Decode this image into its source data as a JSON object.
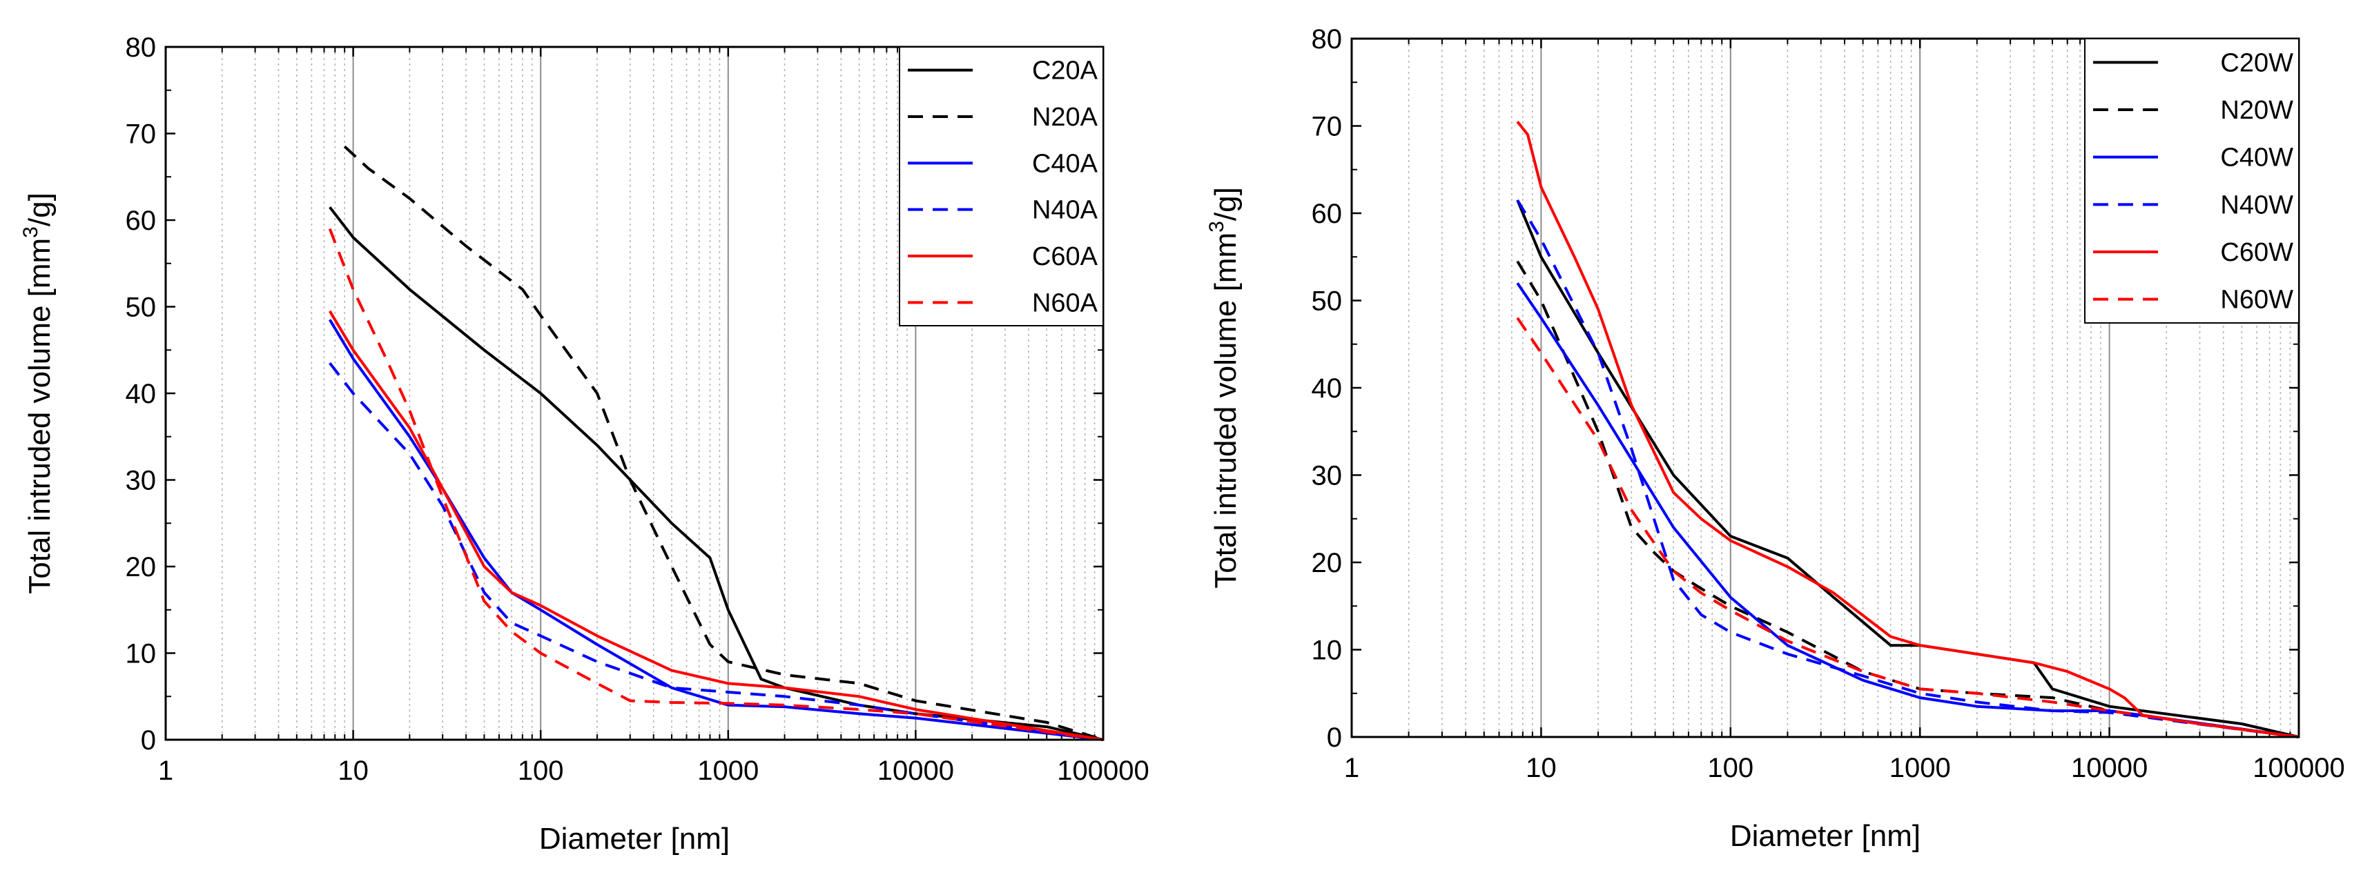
{
  "chart_data": [
    {
      "type": "line",
      "title": "",
      "xlabel": "Diameter [nm]",
      "ylabel_main": "Total intruded volume [mm",
      "ylabel_sup": "3",
      "ylabel_tail": "/g]",
      "ylabel": "Total intruded volume [mm3/g]",
      "xscale": "log",
      "xlim": [
        1,
        100000
      ],
      "ylim": [
        0,
        80
      ],
      "xticks": [
        1,
        10,
        100,
        1000,
        10000,
        100000
      ],
      "xtick_labels": [
        "1",
        "10",
        "100",
        "1000",
        "10000",
        "100000"
      ],
      "yticks": [
        0,
        10,
        20,
        30,
        40,
        50,
        60,
        70,
        80
      ],
      "ytick_labels": [
        "0",
        "10",
        "20",
        "30",
        "40",
        "50",
        "60",
        "70",
        "80"
      ],
      "grid": "vertical-log",
      "legend": "top-right",
      "series": [
        {
          "name": "C20A",
          "color": "#000000",
          "dash": "solid",
          "x": [
            7.5,
            10,
            20,
            50,
            100,
            200,
            500,
            800,
            1000,
            1500,
            2000,
            5000,
            10000,
            50000,
            100000
          ],
          "y": [
            61.5,
            58,
            52,
            45,
            40,
            34,
            25,
            21,
            15,
            7,
            6,
            4,
            3,
            1.5,
            0
          ]
        },
        {
          "name": "N20A",
          "color": "#000000",
          "dash": "dashed",
          "x": [
            9,
            12,
            20,
            40,
            80,
            100,
            200,
            300,
            500,
            800,
            1000,
            2000,
            5000,
            10000,
            50000,
            100000
          ],
          "y": [
            68.5,
            66,
            62.5,
            57,
            52,
            49,
            40,
            30,
            20,
            11,
            9,
            7.5,
            6.5,
            4.5,
            2,
            0
          ]
        },
        {
          "name": "C40A",
          "color": "#0000ff",
          "dash": "solid",
          "x": [
            7.5,
            10,
            20,
            30,
            50,
            70,
            100,
            200,
            500,
            1000,
            2000,
            5000,
            10000,
            100000
          ],
          "y": [
            48.5,
            44,
            35,
            29,
            21,
            17,
            15,
            11,
            6,
            4,
            3.8,
            3,
            2.5,
            0
          ]
        },
        {
          "name": "N40A",
          "color": "#0000ff",
          "dash": "dashed",
          "x": [
            7.5,
            10,
            20,
            30,
            50,
            70,
            100,
            200,
            500,
            1000,
            2000,
            5000,
            10000,
            100000
          ],
          "y": [
            43.5,
            40,
            33,
            27,
            17,
            13.5,
            12,
            9,
            6,
            5.5,
            5,
            4,
            3,
            0
          ]
        },
        {
          "name": "C60A",
          "color": "#ff0000",
          "dash": "solid",
          "x": [
            7.5,
            10,
            20,
            30,
            50,
            70,
            100,
            200,
            500,
            1000,
            2000,
            5000,
            10000,
            100000
          ],
          "y": [
            49.5,
            45,
            36,
            29,
            20,
            17,
            15.5,
            12,
            8,
            6.5,
            6,
            5,
            3.5,
            0
          ]
        },
        {
          "name": "N60A",
          "color": "#ff0000",
          "dash": "dashed",
          "x": [
            7.5,
            10,
            15,
            20,
            30,
            50,
            70,
            100,
            200,
            300,
            500,
            1000,
            2000,
            5000,
            10000,
            100000
          ],
          "y": [
            59,
            52,
            44,
            38,
            28,
            16,
            12.5,
            10,
            6.5,
            4.5,
            4.3,
            4.2,
            4,
            3.5,
            3,
            0
          ]
        }
      ]
    },
    {
      "type": "line",
      "title": "",
      "xlabel": "Diameter [nm]",
      "ylabel_main": "Total intruded volume [mm",
      "ylabel_sup": "3",
      "ylabel_tail": "/g]",
      "ylabel": "Total intruded volume [mm3/g]",
      "xscale": "log",
      "xlim": [
        1,
        100000
      ],
      "ylim": [
        0,
        80
      ],
      "xticks": [
        1,
        10,
        100,
        1000,
        10000,
        100000
      ],
      "xtick_labels": [
        "1",
        "10",
        "100",
        "1000",
        "10000",
        "100000"
      ],
      "yticks": [
        0,
        10,
        20,
        30,
        40,
        50,
        60,
        70,
        80
      ],
      "ytick_labels": [
        "0",
        "10",
        "20",
        "30",
        "40",
        "50",
        "60",
        "70",
        "80"
      ],
      "grid": "vertical-log",
      "legend": "top-right",
      "series": [
        {
          "name": "C20W",
          "color": "#000000",
          "dash": "solid",
          "x": [
            7.5,
            10,
            20,
            50,
            100,
            200,
            350,
            700,
            1000,
            2000,
            4000,
            5000,
            10000,
            50000,
            100000
          ],
          "y": [
            61.5,
            55,
            44,
            30,
            23,
            20.5,
            16,
            10.5,
            10.5,
            9.5,
            8.5,
            5.5,
            3.5,
            1.5,
            0
          ]
        },
        {
          "name": "N20W",
          "color": "#000000",
          "dash": "dashed",
          "x": [
            7.5,
            10,
            20,
            30,
            40,
            50,
            70,
            100,
            200,
            500,
            1000,
            2000,
            5000,
            10000,
            100000
          ],
          "y": [
            54.5,
            50,
            35,
            24,
            21,
            19,
            17,
            15,
            12,
            7.5,
            5.5,
            5,
            4.5,
            3,
            0
          ]
        },
        {
          "name": "C40W",
          "color": "#0000ff",
          "dash": "solid",
          "x": [
            7.5,
            10,
            20,
            50,
            100,
            200,
            500,
            1000,
            2000,
            5000,
            10000,
            100000
          ],
          "y": [
            52,
            48,
            38,
            24,
            16,
            10.5,
            6.5,
            4.5,
            3.5,
            3,
            3,
            0
          ]
        },
        {
          "name": "N40W",
          "color": "#0000ff",
          "dash": "dashed",
          "x": [
            7.5,
            10,
            20,
            30,
            50,
            70,
            100,
            200,
            500,
            1000,
            2000,
            5000,
            10000,
            100000
          ],
          "y": [
            61.5,
            57,
            44,
            33,
            18,
            14,
            12,
            9.5,
            7,
            5,
            4,
            3,
            2.8,
            0
          ]
        },
        {
          "name": "C60W",
          "color": "#ff0000",
          "dash": "solid",
          "x": [
            7.5,
            8.5,
            10,
            15,
            20,
            30,
            50,
            70,
            100,
            200,
            350,
            700,
            1000,
            2000,
            4000,
            6000,
            10000,
            12000,
            15000,
            30000,
            100000
          ],
          "y": [
            70.5,
            69,
            63,
            55,
            49,
            38,
            28,
            25,
            22.5,
            19.5,
            16.5,
            11.5,
            10.5,
            9.5,
            8.5,
            7.5,
            5.5,
            4.5,
            2.5,
            1.5,
            0
          ]
        },
        {
          "name": "N60W",
          "color": "#ff0000",
          "dash": "dashed",
          "x": [
            7.5,
            10,
            20,
            30,
            50,
            70,
            100,
            200,
            500,
            1000,
            2000,
            5000,
            10000,
            30000,
            100000
          ],
          "y": [
            48,
            44,
            34,
            26,
            19,
            16.5,
            14.5,
            11,
            7.5,
            5.5,
            5,
            4,
            3,
            1.5,
            0
          ]
        }
      ]
    }
  ]
}
